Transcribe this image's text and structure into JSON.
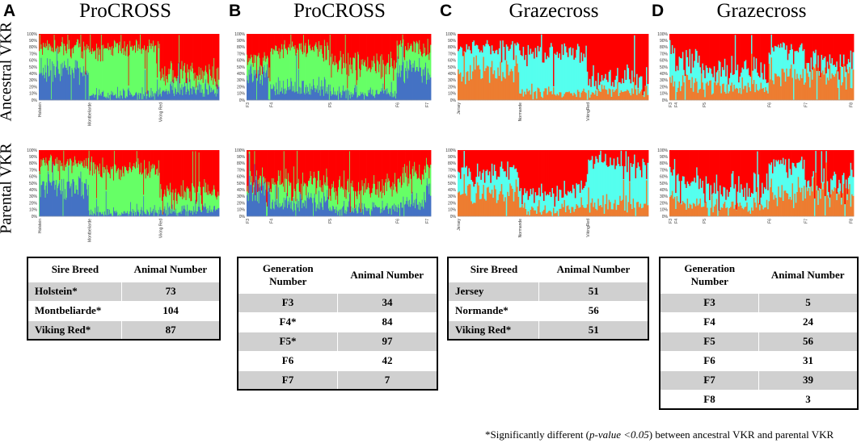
{
  "panels": [
    {
      "label": "A",
      "title": "ProCROSS"
    },
    {
      "label": "B",
      "title": "ProCROSS"
    },
    {
      "label": "C",
      "title": "Grazecross"
    },
    {
      "label": "D",
      "title": "Grazecross"
    }
  ],
  "row_labels": {
    "ancestral": "Ancestral VKR",
    "parental": "Parental VKR"
  },
  "colors": {
    "red": "#ff0000",
    "green": "#66ff66",
    "blue": "#4472c4",
    "cyan": "#55ffee",
    "orange": "#ed7d31"
  },
  "chart_data": [
    {
      "type": "bar",
      "stacked": true,
      "panel": "A",
      "row": "Ancestral VKR",
      "yticks": [
        "100%",
        "90%",
        "80%",
        "70%",
        "60%",
        "50%",
        "40%",
        "30%",
        "20%",
        "10%",
        "0%"
      ],
      "ylim": [
        0,
        100
      ],
      "groups": [
        "Holstein",
        "Montbeliarde",
        "Viking Red"
      ],
      "group_sizes": [
        73,
        104,
        87
      ],
      "series": [
        {
          "name": "blue",
          "color": "#4472c4",
          "group_means": [
            45,
            8,
            15
          ]
        },
        {
          "name": "green",
          "color": "#66ff66",
          "group_means": [
            35,
            70,
            22
          ]
        },
        {
          "name": "red",
          "color": "#ff0000",
          "group_means": [
            20,
            22,
            63
          ]
        }
      ]
    },
    {
      "type": "bar",
      "stacked": true,
      "panel": "A",
      "row": "Parental VKR",
      "yticks": [
        "100%",
        "90%",
        "80%",
        "70%",
        "60%",
        "50%",
        "40%",
        "30%",
        "20%",
        "10%",
        "0%"
      ],
      "ylim": [
        0,
        100
      ],
      "groups": [
        "Holstein",
        "Montbeliarde",
        "Viking Red"
      ],
      "group_sizes": [
        73,
        104,
        87
      ],
      "series": [
        {
          "name": "blue",
          "color": "#4472c4",
          "group_means": [
            45,
            6,
            8
          ]
        },
        {
          "name": "green",
          "color": "#66ff66",
          "group_means": [
            35,
            65,
            25
          ]
        },
        {
          "name": "red",
          "color": "#ff0000",
          "group_means": [
            20,
            29,
            67
          ]
        }
      ]
    },
    {
      "type": "bar",
      "stacked": true,
      "panel": "B",
      "row": "Ancestral VKR",
      "yticks": [
        "100%",
        "90%",
        "80%",
        "70%",
        "60%",
        "50%",
        "40%",
        "30%",
        "20%",
        "10%",
        "0%"
      ],
      "ylim": [
        0,
        100
      ],
      "groups": [
        "F3",
        "F4",
        "F5",
        "F6",
        "F7"
      ],
      "group_sizes": [
        34,
        84,
        97,
        42,
        7
      ],
      "series": [
        {
          "name": "blue",
          "color": "#4472c4",
          "group_means": [
            40,
            18,
            10,
            50,
            35
          ]
        },
        {
          "name": "green",
          "color": "#66ff66",
          "group_means": [
            20,
            60,
            45,
            30,
            40
          ]
        },
        {
          "name": "red",
          "color": "#ff0000",
          "group_means": [
            40,
            22,
            45,
            20,
            25
          ]
        }
      ]
    },
    {
      "type": "bar",
      "stacked": true,
      "panel": "B",
      "row": "Parental VKR",
      "yticks": [
        "100%",
        "90%",
        "80%",
        "70%",
        "60%",
        "50%",
        "40%",
        "30%",
        "20%",
        "10%",
        "0%"
      ],
      "ylim": [
        0,
        100
      ],
      "groups": [
        "F3",
        "F4",
        "F5",
        "F6",
        "F7"
      ],
      "group_sizes": [
        34,
        84,
        97,
        42,
        7
      ],
      "series": [
        {
          "name": "blue",
          "color": "#4472c4",
          "group_means": [
            40,
            20,
            12,
            20,
            40
          ]
        },
        {
          "name": "green",
          "color": "#66ff66",
          "group_means": [
            10,
            30,
            30,
            40,
            30
          ]
        },
        {
          "name": "red",
          "color": "#ff0000",
          "group_means": [
            50,
            50,
            58,
            40,
            30
          ]
        }
      ]
    },
    {
      "type": "bar",
      "stacked": true,
      "panel": "C",
      "row": "Ancestral VKR",
      "yticks": [
        "100%",
        "90%",
        "80%",
        "70%",
        "60%",
        "50%",
        "40%",
        "30%",
        "20%",
        "10%",
        "0%"
      ],
      "ylim": [
        0,
        100
      ],
      "groups": [
        "Jersey",
        "Normande",
        "VikingRed"
      ],
      "group_sizes": [
        51,
        56,
        51
      ],
      "series": [
        {
          "name": "orange",
          "color": "#ed7d31",
          "group_means": [
            45,
            10,
            12
          ]
        },
        {
          "name": "cyan",
          "color": "#55ffee",
          "group_means": [
            35,
            60,
            20
          ]
        },
        {
          "name": "red",
          "color": "#ff0000",
          "group_means": [
            20,
            30,
            68
          ]
        }
      ]
    },
    {
      "type": "bar",
      "stacked": true,
      "panel": "C",
      "row": "Parental VKR",
      "yticks": [
        "100%",
        "90%",
        "80%",
        "70%",
        "60%",
        "50%",
        "40%",
        "30%",
        "20%",
        "10%",
        "0%"
      ],
      "ylim": [
        0,
        100
      ],
      "groups": [
        "Jersey",
        "Normande",
        "VikingRed"
      ],
      "group_sizes": [
        51,
        56,
        51
      ],
      "series": [
        {
          "name": "orange",
          "color": "#ed7d31",
          "group_means": [
            38,
            12,
            18
          ]
        },
        {
          "name": "cyan",
          "color": "#55ffee",
          "group_means": [
            30,
            25,
            62
          ]
        },
        {
          "name": "red",
          "color": "#ff0000",
          "group_means": [
            32,
            63,
            20
          ]
        }
      ]
    },
    {
      "type": "bar",
      "stacked": true,
      "panel": "D",
      "row": "Ancestral VKR",
      "yticks": [
        "100%",
        "90%",
        "80%",
        "70%",
        "60%",
        "50%",
        "40%",
        "30%",
        "20%",
        "10%",
        "0%"
      ],
      "ylim": [
        0,
        100
      ],
      "groups": [
        "F3",
        "F4",
        "F5",
        "F6",
        "F7",
        "F8"
      ],
      "group_sizes": [
        5,
        24,
        56,
        31,
        39,
        3
      ],
      "series": [
        {
          "name": "orange",
          "color": "#ed7d31",
          "group_means": [
            30,
            25,
            18,
            40,
            35,
            30
          ]
        },
        {
          "name": "cyan",
          "color": "#55ffee",
          "group_means": [
            50,
            35,
            25,
            40,
            20,
            40
          ]
        },
        {
          "name": "red",
          "color": "#ff0000",
          "group_means": [
            20,
            40,
            57,
            20,
            45,
            30
          ]
        }
      ]
    },
    {
      "type": "bar",
      "stacked": true,
      "panel": "D",
      "row": "Parental VKR",
      "yticks": [
        "100%",
        "90%",
        "80%",
        "70%",
        "60%",
        "50%",
        "40%",
        "30%",
        "20%",
        "10%",
        "0%"
      ],
      "ylim": [
        0,
        100
      ],
      "groups": [
        "F3",
        "F4",
        "F5",
        "F6",
        "F7",
        "F8"
      ],
      "group_sizes": [
        5,
        24,
        56,
        31,
        39,
        3
      ],
      "series": [
        {
          "name": "orange",
          "color": "#ed7d31",
          "group_means": [
            30,
            20,
            15,
            35,
            35,
            25
          ]
        },
        {
          "name": "cyan",
          "color": "#55ffee",
          "group_means": [
            45,
            35,
            25,
            45,
            15,
            40
          ]
        },
        {
          "name": "red",
          "color": "#ff0000",
          "group_means": [
            25,
            45,
            60,
            20,
            50,
            35
          ]
        }
      ]
    }
  ],
  "tables": [
    {
      "headers": [
        "Sire Breed",
        "Animal Number"
      ],
      "rows": [
        [
          "Holstein*",
          "73"
        ],
        [
          "Montbeliarde*",
          "104"
        ],
        [
          "Viking Red*",
          "87"
        ]
      ]
    },
    {
      "headers": [
        "Generation Number",
        "Animal Number"
      ],
      "rows": [
        [
          "F3",
          "34"
        ],
        [
          "F4*",
          "84"
        ],
        [
          "F5*",
          "97"
        ],
        [
          "F6",
          "42"
        ],
        [
          "F7",
          "7"
        ]
      ]
    },
    {
      "headers": [
        "Sire Breed",
        "Animal Number"
      ],
      "rows": [
        [
          "Jersey",
          "51"
        ],
        [
          "Normande*",
          "56"
        ],
        [
          "Viking Red*",
          "51"
        ]
      ]
    },
    {
      "headers": [
        "Generation Number",
        "Animal Number"
      ],
      "rows": [
        [
          "F3",
          "5"
        ],
        [
          "F4",
          "24"
        ],
        [
          "F5",
          "56"
        ],
        [
          "F6",
          "31"
        ],
        [
          "F7",
          "39"
        ],
        [
          "F8",
          "3"
        ]
      ]
    }
  ],
  "footnote": {
    "prefix": "*Significantly different (",
    "italic": "p-value <0.05",
    "suffix": ") between ancestral VKR and parental VKR"
  }
}
